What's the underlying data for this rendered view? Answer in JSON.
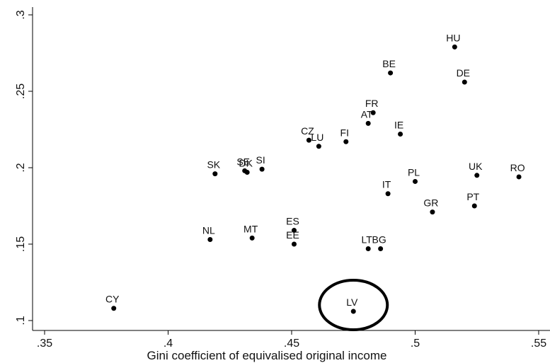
{
  "chart_data": {
    "type": "scatter",
    "title": "",
    "xlabel": "Gini coefficient of equivalised original income",
    "ylabel": "",
    "xlim": [
      0.35,
      0.55
    ],
    "ylim": [
      0.1,
      0.3
    ],
    "xticks": [
      0.35,
      0.4,
      0.45,
      0.5,
      0.55
    ],
    "xtick_labels": [
      ".35",
      ".4",
      ".45",
      ".5",
      ".55"
    ],
    "yticks": [
      0.1,
      0.15,
      0.2,
      0.25,
      0.3
    ],
    "ytick_labels": [
      ".1",
      ".15",
      ".2",
      ".25",
      ".3"
    ],
    "grid": false,
    "points": [
      {
        "label": "HU",
        "x": 0.516,
        "y": 0.279
      },
      {
        "label": "BE",
        "x": 0.49,
        "y": 0.262
      },
      {
        "label": "DE",
        "x": 0.52,
        "y": 0.256
      },
      {
        "label": "FR",
        "x": 0.483,
        "y": 0.236
      },
      {
        "label": "AT",
        "x": 0.481,
        "y": 0.229
      },
      {
        "label": "IE",
        "x": 0.494,
        "y": 0.222
      },
      {
        "label": "CZ",
        "x": 0.457,
        "y": 0.218
      },
      {
        "label": "LU",
        "x": 0.461,
        "y": 0.214
      },
      {
        "label": "FI",
        "x": 0.472,
        "y": 0.217
      },
      {
        "label": "SK",
        "x": 0.419,
        "y": 0.196
      },
      {
        "label": "SE",
        "x": 0.431,
        "y": 0.198
      },
      {
        "label": "DK",
        "x": 0.432,
        "y": 0.197
      },
      {
        "label": "SI",
        "x": 0.438,
        "y": 0.199
      },
      {
        "label": "UK",
        "x": 0.525,
        "y": 0.195
      },
      {
        "label": "RO",
        "x": 0.542,
        "y": 0.194
      },
      {
        "label": "PL",
        "x": 0.5,
        "y": 0.191
      },
      {
        "label": "IT",
        "x": 0.489,
        "y": 0.183
      },
      {
        "label": "PT",
        "x": 0.524,
        "y": 0.175
      },
      {
        "label": "GR",
        "x": 0.507,
        "y": 0.171
      },
      {
        "label": "NL",
        "x": 0.417,
        "y": 0.153
      },
      {
        "label": "MT",
        "x": 0.434,
        "y": 0.154
      },
      {
        "label": "ES",
        "x": 0.451,
        "y": 0.159
      },
      {
        "label": "EE",
        "x": 0.451,
        "y": 0.15
      },
      {
        "label": "LT",
        "x": 0.481,
        "y": 0.147
      },
      {
        "label": "BG",
        "x": 0.486,
        "y": 0.147
      },
      {
        "label": "CY",
        "x": 0.378,
        "y": 0.108
      },
      {
        "label": "LV",
        "x": 0.475,
        "y": 0.106
      }
    ],
    "highlight": {
      "label": "LV",
      "shape": "ellipse"
    },
    "colors": {
      "marker": "#000000",
      "axis": "#000000",
      "background": "#ffffff"
    }
  }
}
